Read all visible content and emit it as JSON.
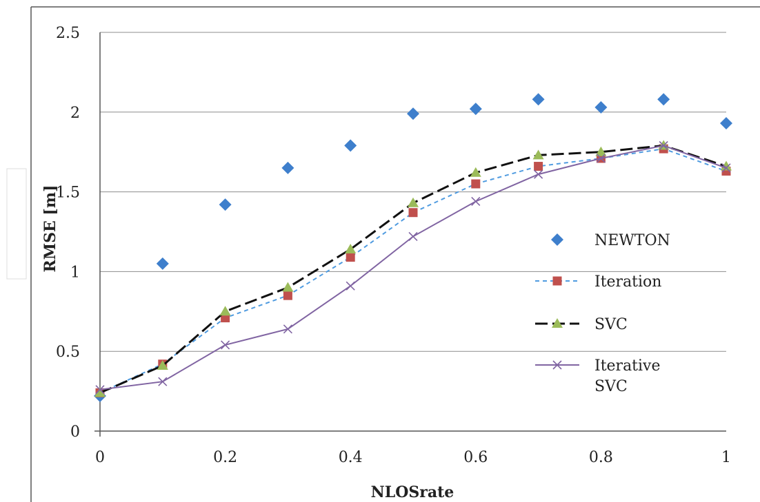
{
  "chart_data": {
    "type": "line",
    "title": "",
    "xlabel": "NLOSrate",
    "ylabel": "RMSE [m]",
    "xlim": [
      0,
      1
    ],
    "ylim": [
      0,
      2.5
    ],
    "xticks": [
      0,
      0.2,
      0.4,
      0.6,
      0.8,
      1
    ],
    "xtick_labels": [
      "0",
      "0.2",
      "0.4",
      "0.6",
      "0.8",
      "1"
    ],
    "yticks": [
      0,
      0.5,
      1,
      1.5,
      2,
      2.5
    ],
    "ytick_labels": [
      "0",
      "0.5",
      "1",
      "1.5",
      "2",
      "2.5"
    ],
    "grid": "horizontal",
    "legend_position": "right",
    "x": [
      0,
      0.1,
      0.2,
      0.3,
      0.4,
      0.5,
      0.6,
      0.7,
      0.8,
      0.9,
      1.0
    ],
    "series": [
      {
        "name": "NEWTON",
        "values": [
          0.22,
          1.05,
          1.42,
          1.65,
          1.79,
          1.99,
          2.02,
          2.08,
          2.03,
          2.08,
          1.93
        ],
        "color": "#3e7fcc",
        "marker": "diamond",
        "line": "none"
      },
      {
        "name": "Iteration",
        "values": [
          0.24,
          0.42,
          0.71,
          0.85,
          1.09,
          1.37,
          1.55,
          1.66,
          1.71,
          1.77,
          1.63
        ],
        "color": "#c0504d",
        "line_color": "#4f9be0",
        "marker": "square",
        "line": "dashed"
      },
      {
        "name": "SVC",
        "values": [
          0.24,
          0.41,
          0.75,
          0.9,
          1.14,
          1.43,
          1.62,
          1.73,
          1.75,
          1.79,
          1.66
        ],
        "color": "#9bbb59",
        "line_color": "#111111",
        "marker": "triangle",
        "line": "long-dash"
      },
      {
        "name": "Iterative\nSVC",
        "values": [
          0.26,
          0.31,
          0.54,
          0.64,
          0.91,
          1.22,
          1.44,
          1.61,
          1.71,
          1.79,
          1.65
        ],
        "color": "#8064a2",
        "marker": "x",
        "line": "solid"
      }
    ]
  }
}
